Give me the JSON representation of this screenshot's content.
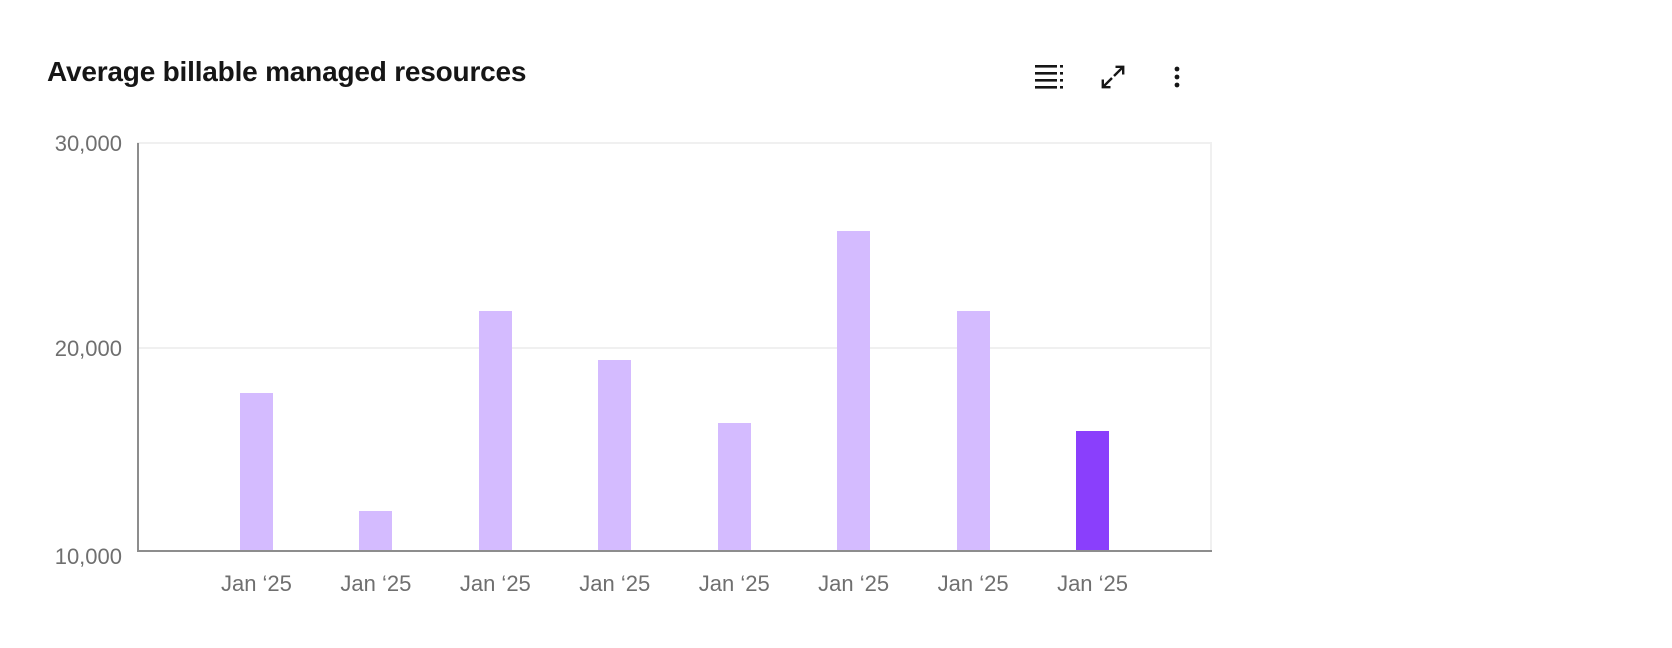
{
  "header": {
    "title": "Average billable managed resources"
  },
  "icons": {
    "toolbar": [
      "data-table-icon",
      "maximize-icon",
      "overflow-menu-icon"
    ]
  },
  "colors": {
    "bar": "#d4bbff",
    "bar_highlight": "#8a3ffc",
    "axis": "#8d8d8d",
    "grid": "#f0f0f0",
    "tick_text": "#6f6f6f",
    "title_text": "#161616",
    "icon": "#161616"
  },
  "chart_data": {
    "type": "bar",
    "title": "Average billable managed resources",
    "categories": [
      "Jan ‘25",
      "Jan ‘25",
      "Jan ‘25",
      "Jan ‘25",
      "Jan ‘25",
      "Jan ‘25",
      "Jan ‘25",
      "Jan ‘25"
    ],
    "values": [
      17800,
      12000,
      21800,
      19400,
      16300,
      25700,
      21800,
      15900
    ],
    "highlighted_index": 7,
    "xlabel": "",
    "ylabel": "",
    "ylim": [
      10000,
      30000
    ],
    "yticks": [
      {
        "value": 10000,
        "label": "10,000"
      },
      {
        "value": 20000,
        "label": "20,000"
      },
      {
        "value": 30000,
        "label": "30,000"
      }
    ],
    "legend": "none",
    "grid": "horizontal"
  }
}
